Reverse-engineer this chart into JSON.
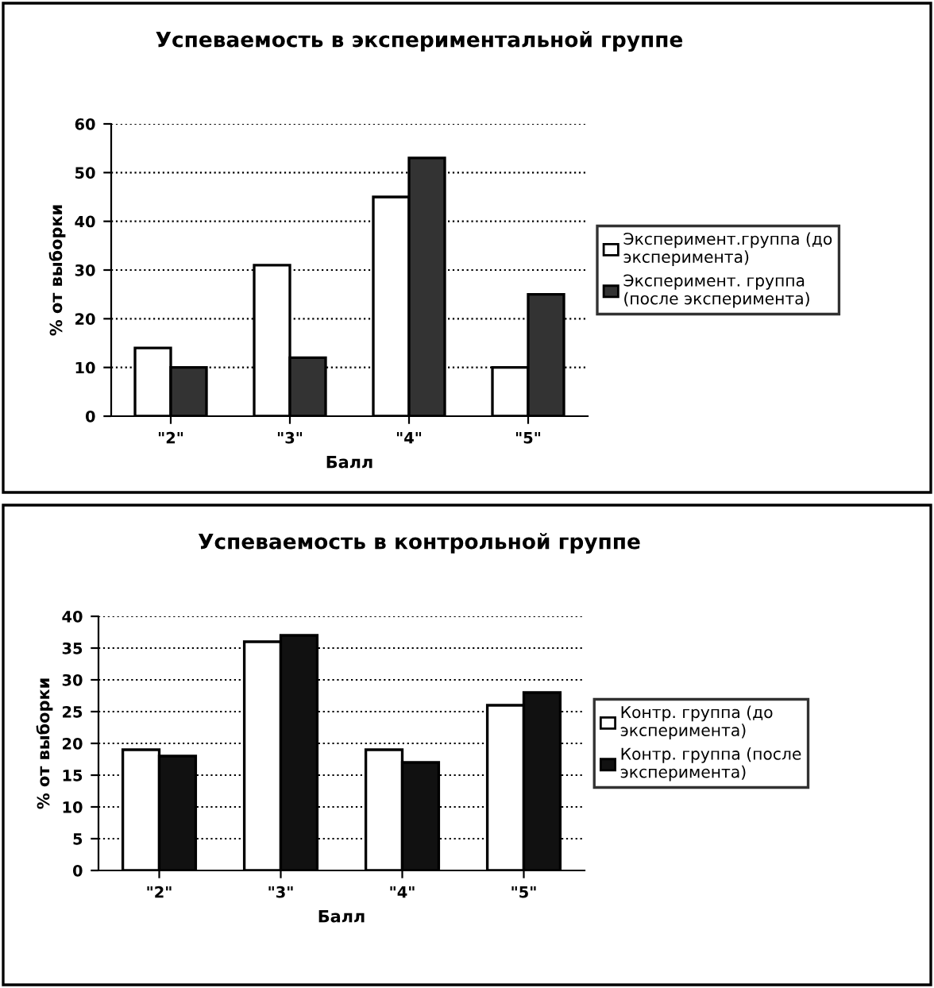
{
  "chart_data": [
    {
      "type": "bar",
      "title": "Успеваемость в экспериментальной группе",
      "xlabel": "Балл",
      "ylabel": "% от выборки",
      "categories": [
        "\"2\"",
        "\"3\"",
        "\"4\"",
        "\"5\""
      ],
      "series": [
        {
          "name": "Эксперимент.группа (до\nэксперимента)",
          "color": "#ffffff",
          "values": [
            14,
            31,
            45,
            10
          ]
        },
        {
          "name": "Эксперимент. группа\n(после эксперимента)",
          "color": "#333333",
          "values": [
            10,
            12,
            53,
            25
          ]
        }
      ],
      "ylim": [
        0,
        60
      ],
      "yticks": [
        0,
        10,
        20,
        30,
        40,
        50,
        60
      ],
      "grid": "y",
      "legend": "right"
    },
    {
      "type": "bar",
      "title": "Успеваемость в контрольной группе",
      "xlabel": "Балл",
      "ylabel": "% от выборки",
      "categories": [
        "\"2\"",
        "\"3\"",
        "\"4\"",
        "\"5\""
      ],
      "series": [
        {
          "name": "Контр. группа (до\nэксперимента)",
          "color": "#ffffff",
          "values": [
            19,
            36,
            19,
            26
          ]
        },
        {
          "name": "Контр. группа (после\nэксперимента)",
          "color": "#111111",
          "values": [
            18,
            37,
            17,
            28
          ]
        }
      ],
      "ylim": [
        0,
        40
      ],
      "yticks": [
        0,
        5,
        10,
        15,
        20,
        25,
        30,
        35,
        40
      ],
      "grid": "y",
      "legend": "right"
    }
  ]
}
